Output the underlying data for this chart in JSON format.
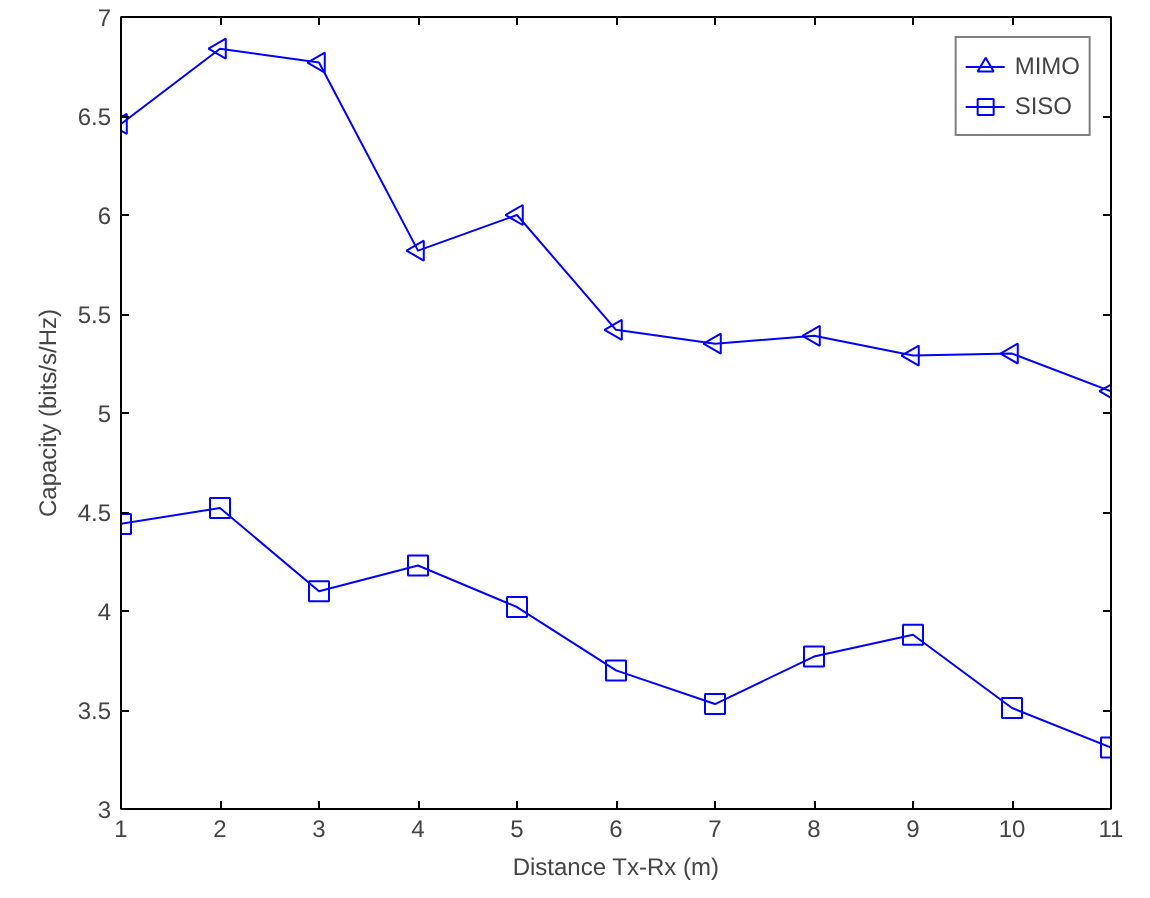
{
  "chart_data": {
    "type": "line",
    "xlabel": "Distance Tx-Rx (m)",
    "ylabel": "Capacity (bits/s/Hz)",
    "x": [
      1,
      2,
      3,
      4,
      5,
      6,
      7,
      8,
      9,
      10,
      11
    ],
    "series": [
      {
        "name": "MIMO",
        "color": "#0000ff",
        "marker": "triangle",
        "values": [
          6.46,
          6.84,
          6.77,
          5.82,
          6.0,
          5.42,
          5.35,
          5.39,
          5.29,
          5.3,
          5.11
        ]
      },
      {
        "name": "SISO",
        "color": "#0000ff",
        "marker": "square",
        "values": [
          4.44,
          4.52,
          4.1,
          4.23,
          4.02,
          3.7,
          3.53,
          3.77,
          3.88,
          3.51,
          3.31
        ]
      }
    ],
    "xlim": [
      1,
      11
    ],
    "ylim": [
      3,
      7
    ],
    "xticks": [
      1,
      2,
      3,
      4,
      5,
      6,
      7,
      8,
      9,
      10,
      11
    ],
    "yticks": [
      3,
      3.5,
      4,
      4.5,
      5,
      5.5,
      6,
      6.5,
      7
    ],
    "grid": false,
    "legend": "top right",
    "line_style": "solid"
  }
}
